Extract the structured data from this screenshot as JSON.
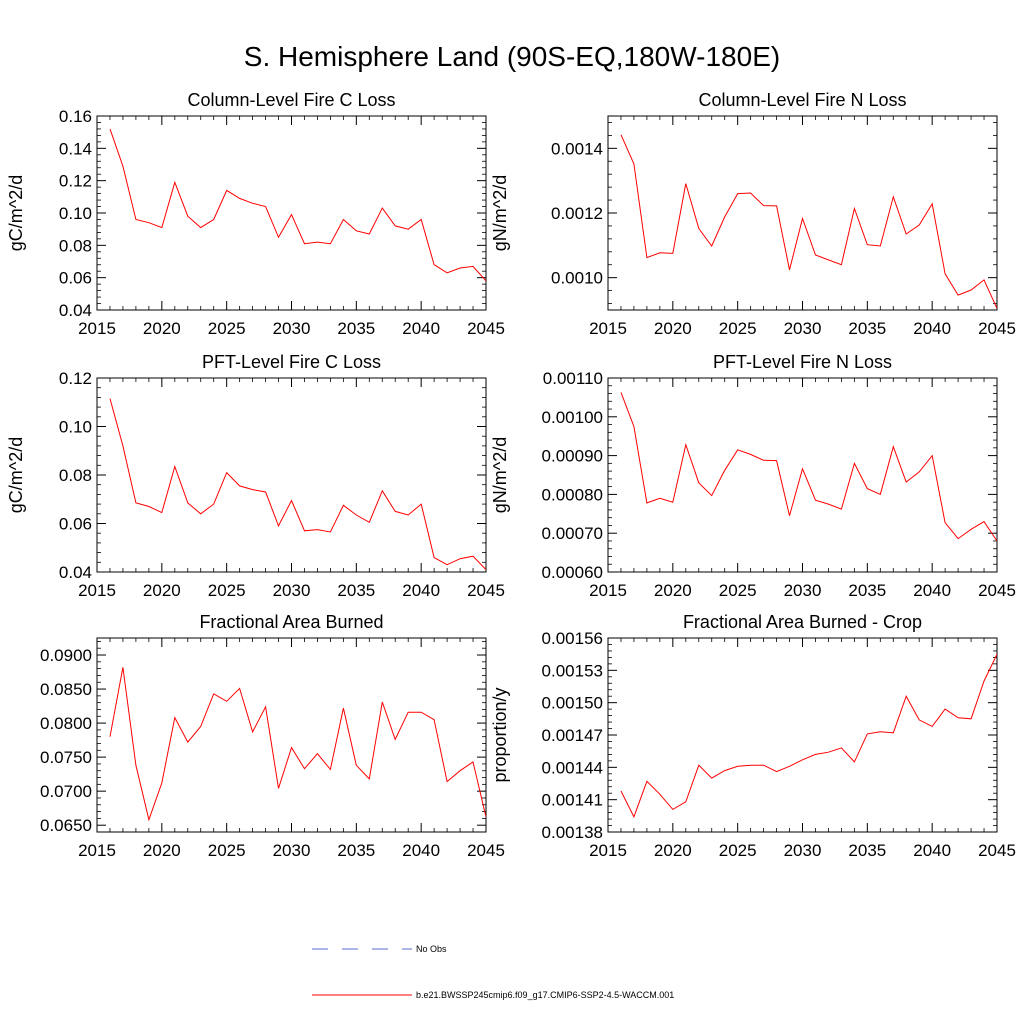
{
  "figure": {
    "title": "S. Hemisphere Land (90S-EQ,180W-180E)"
  },
  "legend": {
    "items": [
      {
        "label": "No Obs",
        "color": "#5a6bc8",
        "dash": "dashed"
      },
      {
        "label": "b.e21.BWSSP245cmip6.f09_g17.CMIP6-SSP2-4.5-WACCM.001",
        "color": "#ff0000",
        "dash": "solid"
      }
    ]
  },
  "chart_data": [
    {
      "type": "line",
      "title": "Column-Level Fire C Loss",
      "ylabel": "gC/m^2/d",
      "xlim": [
        2015,
        2045
      ],
      "ylim": [
        0.04,
        0.16
      ],
      "xticks": [
        "2015",
        "2020",
        "2025",
        "2030",
        "2035",
        "2040",
        "2045"
      ],
      "yticks": [
        "0.04",
        "0.06",
        "0.08",
        "0.10",
        "0.12",
        "0.14",
        "0.16"
      ],
      "series": [
        {
          "color": "#ff0000",
          "x": [
            2016,
            2017,
            2018,
            2019,
            2020,
            2021,
            2022,
            2023,
            2024,
            2025,
            2026,
            2027,
            2028,
            2029,
            2030,
            2031,
            2032,
            2033,
            2034,
            2035,
            2036,
            2037,
            2038,
            2039,
            2040,
            2041,
            2042,
            2043,
            2044,
            2045
          ],
          "values": [
            0.152,
            0.129,
            0.096,
            0.094,
            0.091,
            0.119,
            0.098,
            0.091,
            0.096,
            0.114,
            0.109,
            0.106,
            0.104,
            0.085,
            0.099,
            0.081,
            0.082,
            0.081,
            0.096,
            0.089,
            0.087,
            0.103,
            0.092,
            0.09,
            0.096,
            0.068,
            0.063,
            0.066,
            0.067,
            0.058
          ]
        }
      ]
    },
    {
      "type": "line",
      "title": "Column-Level Fire N Loss",
      "ylabel": "gN/m^2/d",
      "xlim": [
        2015,
        2045
      ],
      "ylim": [
        0.0009,
        0.0015
      ],
      "xticks": [
        "2015",
        "2020",
        "2025",
        "2030",
        "2035",
        "2040",
        "2045"
      ],
      "yticks": [
        "0.0010",
        "0.0012",
        "0.0014"
      ],
      "series": [
        {
          "color": "#ff0000",
          "x": [
            2016,
            2017,
            2018,
            2019,
            2020,
            2021,
            2022,
            2023,
            2024,
            2025,
            2026,
            2027,
            2028,
            2029,
            2030,
            2031,
            2032,
            2033,
            2034,
            2035,
            2036,
            2037,
            2038,
            2039,
            2040,
            2041,
            2042,
            2043,
            2044,
            2045
          ],
          "values": [
            0.001442,
            0.001352,
            0.001062,
            0.001077,
            0.001075,
            0.001291,
            0.001152,
            0.001098,
            0.001188,
            0.00126,
            0.001262,
            0.001223,
            0.001222,
            0.001024,
            0.001183,
            0.00107,
            0.001055,
            0.00104,
            0.001214,
            0.001102,
            0.001098,
            0.00125,
            0.001135,
            0.001163,
            0.001228,
            0.001012,
            0.000946,
            0.000962,
            0.000993,
            0.000905
          ]
        }
      ]
    },
    {
      "type": "line",
      "title": "PFT-Level Fire C Loss",
      "ylabel": "gC/m^2/d",
      "xlim": [
        2015,
        2045
      ],
      "ylim": [
        0.04,
        0.12
      ],
      "xticks": [
        "2015",
        "2020",
        "2025",
        "2030",
        "2035",
        "2040",
        "2045"
      ],
      "yticks": [
        "0.04",
        "0.06",
        "0.08",
        "0.10",
        "0.12"
      ],
      "series": [
        {
          "color": "#ff0000",
          "x": [
            2016,
            2017,
            2018,
            2019,
            2020,
            2021,
            2022,
            2023,
            2024,
            2025,
            2026,
            2027,
            2028,
            2029,
            2030,
            2031,
            2032,
            2033,
            2034,
            2035,
            2036,
            2037,
            2038,
            2039,
            2040,
            2041,
            2042,
            2043,
            2044,
            2045
          ],
          "values": [
            0.1115,
            0.092,
            0.0685,
            0.067,
            0.0645,
            0.0835,
            0.0685,
            0.064,
            0.068,
            0.081,
            0.0755,
            0.074,
            0.073,
            0.059,
            0.0695,
            0.057,
            0.0575,
            0.0565,
            0.0675,
            0.0635,
            0.0605,
            0.0735,
            0.065,
            0.0635,
            0.068,
            0.046,
            0.043,
            0.0455,
            0.0465,
            0.041
          ]
        }
      ]
    },
    {
      "type": "line",
      "title": "PFT-Level Fire N Loss",
      "ylabel": "gN/m^2/d",
      "xlim": [
        2015,
        2045
      ],
      "ylim": [
        0.0006,
        0.0011
      ],
      "xticks": [
        "2015",
        "2020",
        "2025",
        "2030",
        "2035",
        "2040",
        "2045"
      ],
      "yticks": [
        "0.00060",
        "0.00070",
        "0.00080",
        "0.00090",
        "0.00100",
        "0.00110"
      ],
      "series": [
        {
          "color": "#ff0000",
          "x": [
            2016,
            2017,
            2018,
            2019,
            2020,
            2021,
            2022,
            2023,
            2024,
            2025,
            2026,
            2027,
            2028,
            2029,
            2030,
            2031,
            2032,
            2033,
            2034,
            2035,
            2036,
            2037,
            2038,
            2039,
            2040,
            2041,
            2042,
            2043,
            2044,
            2045
          ],
          "values": [
            0.001063,
            0.000975,
            0.000778,
            0.00079,
            0.00078,
            0.000928,
            0.00083,
            0.000797,
            0.000862,
            0.000915,
            0.000903,
            0.000888,
            0.000887,
            0.000745,
            0.000866,
            0.000785,
            0.000775,
            0.000762,
            0.00088,
            0.000815,
            0.0008,
            0.000923,
            0.000832,
            0.000858,
            0.0009,
            0.000727,
            0.000686,
            0.00071,
            0.00073,
            0.00068
          ]
        }
      ]
    },
    {
      "type": "line",
      "title": "Fractional Area Burned",
      "ylabel": "",
      "xlim": [
        2015,
        2045
      ],
      "ylim": [
        0.064,
        0.0925
      ],
      "xticks": [
        "2015",
        "2020",
        "2025",
        "2030",
        "2035",
        "2040",
        "2045"
      ],
      "yticks": [
        "0.0650",
        "0.0700",
        "0.0750",
        "0.0800",
        "0.0850",
        "0.0900"
      ],
      "series": [
        {
          "color": "#ff0000",
          "x": [
            2016,
            2017,
            2018,
            2019,
            2020,
            2021,
            2022,
            2023,
            2024,
            2025,
            2026,
            2027,
            2028,
            2029,
            2030,
            2031,
            2032,
            2033,
            2034,
            2035,
            2036,
            2037,
            2038,
            2039,
            2040,
            2041,
            2042,
            2043,
            2044,
            2045
          ],
          "values": [
            0.078,
            0.0882,
            0.0738,
            0.0658,
            0.0712,
            0.0808,
            0.0772,
            0.0795,
            0.0843,
            0.0832,
            0.0851,
            0.0787,
            0.0824,
            0.0704,
            0.0764,
            0.0733,
            0.0755,
            0.0732,
            0.0822,
            0.0738,
            0.0718,
            0.0831,
            0.0776,
            0.0816,
            0.0816,
            0.0805,
            0.0714,
            0.073,
            0.0743,
            0.0662
          ]
        }
      ]
    },
    {
      "type": "line",
      "title": "Fractional Area Burned - Crop",
      "ylabel": "proportion/y",
      "xlim": [
        2015,
        2045
      ],
      "ylim": [
        0.00138,
        0.00156
      ],
      "xticks": [
        "2015",
        "2020",
        "2025",
        "2030",
        "2035",
        "2040",
        "2045"
      ],
      "yticks": [
        "0.00138",
        "0.00141",
        "0.00144",
        "0.00147",
        "0.00150",
        "0.00153",
        "0.00156"
      ],
      "series": [
        {
          "color": "#ff0000",
          "x": [
            2016,
            2017,
            2018,
            2019,
            2020,
            2021,
            2022,
            2023,
            2024,
            2025,
            2026,
            2027,
            2028,
            2029,
            2030,
            2031,
            2032,
            2033,
            2034,
            2035,
            2036,
            2037,
            2038,
            2039,
            2040,
            2041,
            2042,
            2043,
            2044,
            2045
          ],
          "values": [
            0.001418,
            0.001394,
            0.001427,
            0.001415,
            0.001401,
            0.001408,
            0.001442,
            0.00143,
            0.001437,
            0.001441,
            0.001442,
            0.001442,
            0.001436,
            0.001441,
            0.001447,
            0.001452,
            0.001454,
            0.001458,
            0.001445,
            0.001471,
            0.001473,
            0.001472,
            0.001506,
            0.001484,
            0.001478,
            0.001494,
            0.001486,
            0.001485,
            0.00152,
            0.001545
          ]
        }
      ]
    }
  ]
}
